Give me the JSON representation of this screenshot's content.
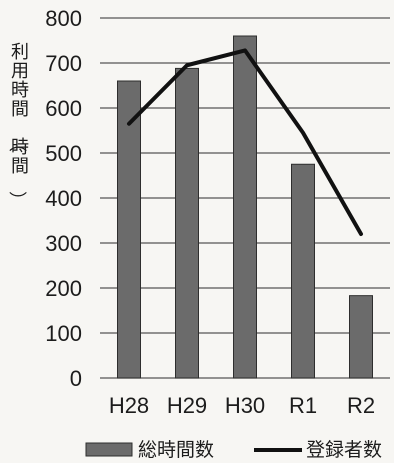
{
  "chart_data": {
    "type": "bar",
    "categories": [
      "H28",
      "H29",
      "H30",
      "R1",
      "R2"
    ],
    "series": [
      {
        "name": "総時間数",
        "type": "bar",
        "values": [
          660,
          688,
          760,
          475,
          183
        ]
      },
      {
        "name": "登録者数",
        "type": "line",
        "values": [
          565,
          695,
          728,
          545,
          320
        ]
      }
    ],
    "ylabel": "利用時間（時間）",
    "ylim": [
      0,
      800
    ],
    "yticks": [
      0,
      100,
      200,
      300,
      400,
      500,
      600,
      700,
      800
    ],
    "grid": true,
    "legend": "bottom",
    "colors": {
      "bar": "#6b6b6b",
      "bar_edge": "#2e2e2e",
      "line": "#111111",
      "grid": "#555555"
    }
  }
}
